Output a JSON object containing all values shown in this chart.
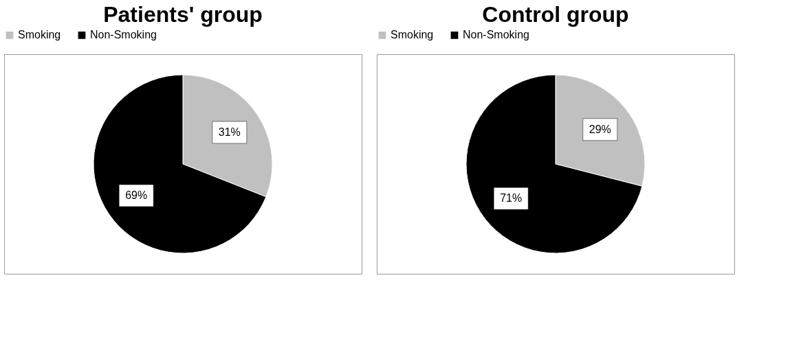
{
  "chart_data": [
    {
      "type": "pie",
      "title": "Patients' group",
      "categories": [
        "Smoking",
        "Non-Smoking"
      ],
      "values": [
        31,
        69
      ],
      "colors": [
        "#c0c0c0",
        "#000000"
      ],
      "value_labels": [
        "31%",
        "69%"
      ],
      "legend": "top"
    },
    {
      "type": "pie",
      "title": "Control group",
      "categories": [
        "Smoking",
        "Non-Smoking"
      ],
      "values": [
        29,
        71
      ],
      "colors": [
        "#c0c0c0",
        "#000000"
      ],
      "value_labels": [
        "29%",
        "71%"
      ],
      "legend": "top"
    }
  ]
}
